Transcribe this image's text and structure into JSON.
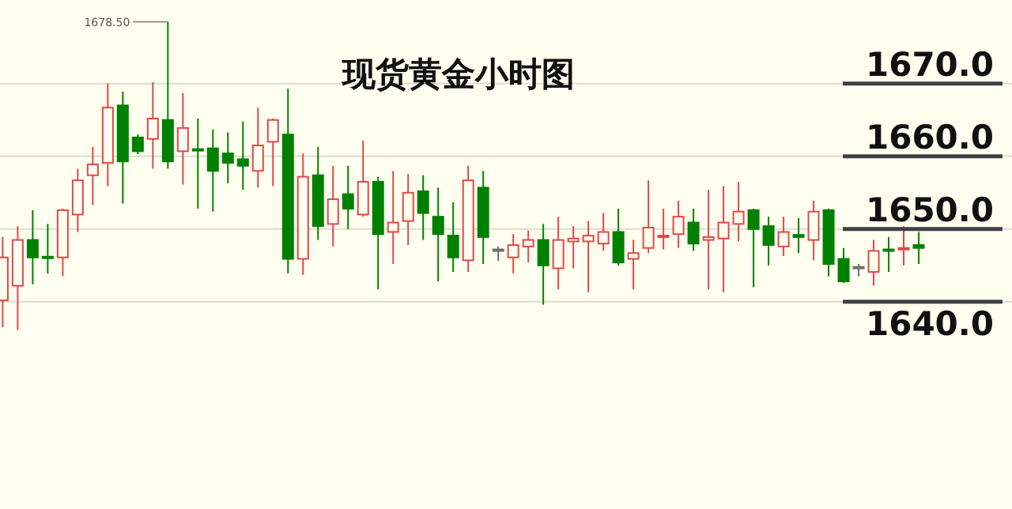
{
  "chart_data": {
    "type": "candlestick",
    "title": "现货黄金小时图",
    "categories": [
      null,
      null,
      null,
      null,
      null,
      null,
      null,
      null,
      null,
      null,
      null,
      null,
      null,
      null,
      null,
      null,
      null,
      null,
      null,
      null,
      null,
      null,
      null,
      null,
      null,
      null,
      null,
      null,
      null,
      null,
      null,
      null,
      null,
      null,
      null,
      null,
      null,
      null,
      null,
      null,
      null,
      null,
      null,
      null,
      null,
      null,
      null,
      null,
      null,
      null,
      null,
      null,
      null,
      null,
      null,
      null,
      null,
      null,
      null,
      null,
      null,
      null
    ],
    "ohlc": [
      [
        1640.2,
        1648.9,
        1636.5,
        1646.1
      ],
      [
        1642.2,
        1650.4,
        1636.1,
        1648.5
      ],
      [
        1648.5,
        1652.6,
        1642.4,
        1646.1
      ],
      [
        1646.2,
        1650.7,
        1643.9,
        1646.0
      ],
      [
        1646.1,
        1652.8,
        1643.5,
        1652.6
      ],
      [
        1652.0,
        1658.3,
        1649.6,
        1656.7
      ],
      [
        1657.4,
        1661.3,
        1653.3,
        1658.9
      ],
      [
        1659.1,
        1670.0,
        1655.9,
        1666.7
      ],
      [
        1667.0,
        1668.9,
        1653.5,
        1659.3
      ],
      [
        1662.6,
        1663.0,
        1660.3,
        1660.7
      ],
      [
        1662.4,
        1670.2,
        1658.3,
        1665.2
      ],
      [
        1665.0,
        1678.5,
        1658.3,
        1659.3
      ],
      [
        1660.7,
        1668.7,
        1656.1,
        1663.9
      ],
      [
        1661.0,
        1665.2,
        1652.8,
        1660.8
      ],
      [
        1661.1,
        1663.7,
        1652.4,
        1658.0
      ],
      [
        1660.4,
        1663.3,
        1656.3,
        1659.1
      ],
      [
        1659.6,
        1664.8,
        1655.4,
        1658.7
      ],
      [
        1658.0,
        1666.7,
        1655.7,
        1661.5
      ],
      [
        1662.0,
        1665.2,
        1655.9,
        1665.0
      ],
      [
        1663.0,
        1669.3,
        1643.9,
        1645.9
      ],
      [
        1645.9,
        1660.4,
        1643.7,
        1657.2
      ],
      [
        1657.4,
        1661.3,
        1648.5,
        1650.4
      ],
      [
        1650.7,
        1658.7,
        1647.6,
        1654.1
      ],
      [
        1654.8,
        1658.7,
        1650.0,
        1652.8
      ],
      [
        1652.0,
        1662.2,
        1651.7,
        1656.5
      ],
      [
        1656.5,
        1657.2,
        1641.7,
        1649.3
      ],
      [
        1649.6,
        1658.0,
        1645.2,
        1650.9
      ],
      [
        1651.1,
        1657.6,
        1647.8,
        1655.0
      ],
      [
        1655.2,
        1657.4,
        1648.5,
        1652.2
      ],
      [
        1651.7,
        1655.7,
        1642.8,
        1649.3
      ],
      [
        1649.1,
        1653.7,
        1644.1,
        1646.1
      ],
      [
        1645.7,
        1658.7,
        1644.1,
        1656.7
      ],
      [
        1655.7,
        1658.0,
        1645.2,
        1648.9
      ],
      [
        1647.2,
        1647.6,
        1645.6,
        1647.2
      ],
      [
        1646.1,
        1649.3,
        1643.9,
        1647.8
      ],
      [
        1647.6,
        1649.8,
        1645.4,
        1648.5
      ],
      [
        1648.5,
        1650.7,
        1639.6,
        1645.0
      ],
      [
        1644.6,
        1651.7,
        1641.7,
        1648.5
      ],
      [
        1648.3,
        1650.4,
        1644.6,
        1648.7
      ],
      [
        1648.3,
        1651.1,
        1641.3,
        1649.1
      ],
      [
        1648.0,
        1652.2,
        1647.0,
        1649.6
      ],
      [
        1649.6,
        1652.8,
        1645.0,
        1645.4
      ],
      [
        1645.9,
        1648.5,
        1641.7,
        1646.7
      ],
      [
        1647.4,
        1656.7,
        1646.7,
        1650.2
      ],
      [
        1648.9,
        1652.8,
        1647.2,
        1649.1
      ],
      [
        1649.3,
        1653.9,
        1647.4,
        1651.7
      ],
      [
        1650.9,
        1652.8,
        1647.0,
        1648.0
      ],
      [
        1648.5,
        1655.4,
        1641.7,
        1648.9
      ],
      [
        1648.7,
        1655.9,
        1641.3,
        1650.9
      ],
      [
        1650.7,
        1656.5,
        1648.3,
        1652.4
      ],
      [
        1652.6,
        1652.8,
        1642.0,
        1650.0
      ],
      [
        1650.4,
        1651.7,
        1645.0,
        1647.8
      ],
      [
        1647.6,
        1651.7,
        1646.3,
        1649.6
      ],
      [
        1649.2,
        1651.5,
        1646.7,
        1648.9
      ],
      [
        1648.5,
        1653.9,
        1645.7,
        1652.4
      ],
      [
        1652.6,
        1652.8,
        1643.5,
        1645.2
      ],
      [
        1645.9,
        1647.4,
        1642.6,
        1642.8
      ],
      [
        1644.8,
        1645.2,
        1643.5,
        1644.8
      ],
      [
        1644.1,
        1648.5,
        1642.2,
        1647.0
      ],
      [
        1647.2,
        1648.9,
        1644.1,
        1647.0
      ],
      [
        1647.2,
        1650.4,
        1645.0,
        1647.4
      ],
      [
        1647.8,
        1649.6,
        1645.2,
        1647.4
      ]
    ],
    "colors": [
      "#e0484a",
      "#e0484a",
      "#008000",
      "#008000",
      "#e0484a",
      "#e0484a",
      "#e0484a",
      "#e0484a",
      "#008000",
      "#008000",
      "#e0484a",
      "#008000",
      "#e0484a",
      "#008000",
      "#008000",
      "#008000",
      "#008000",
      "#e0484a",
      "#e0484a",
      "#008000",
      "#e0484a",
      "#008000",
      "#e0484a",
      "#008000",
      "#e0484a",
      "#008000",
      "#e0484a",
      "#e0484a",
      "#008000",
      "#008000",
      "#008000",
      "#e0484a",
      "#008000",
      "#707070",
      "#e0484a",
      "#e0484a",
      "#008000",
      "#e0484a",
      "#e0484a",
      "#e0484a",
      "#e0484a",
      "#008000",
      "#e0484a",
      "#e0484a",
      "#e0484a",
      "#e0484a",
      "#008000",
      "#e0484a",
      "#e0484a",
      "#e0484a",
      "#008000",
      "#008000",
      "#e0484a",
      "#008000",
      "#e0484a",
      "#008000",
      "#008000",
      "#707070",
      "#e0484a",
      "#008000",
      "#e0484a",
      "#008000"
    ],
    "ylim": [
      1611.5,
      1681.5
    ],
    "yticks": [
      {
        "value": 1670,
        "label": null
      },
      {
        "value": 1660,
        "label": null
      },
      {
        "value": 1650,
        "label": null
      },
      {
        "value": 1640,
        "label": null
      }
    ],
    "ref_lines": [
      {
        "axis": "y",
        "value": 1670,
        "label": "1670.0",
        "color": "#404048"
      },
      {
        "axis": "y",
        "value": 1660,
        "label": "1660.0",
        "color": "#404048"
      },
      {
        "axis": "y",
        "value": 1650,
        "label": "1650.0",
        "color": "#404048"
      },
      {
        "axis": "y",
        "value": 1640,
        "label": "1640.0",
        "color": "#404048"
      }
    ],
    "grid": "y",
    "annotations": [
      "1678.50"
    ]
  }
}
